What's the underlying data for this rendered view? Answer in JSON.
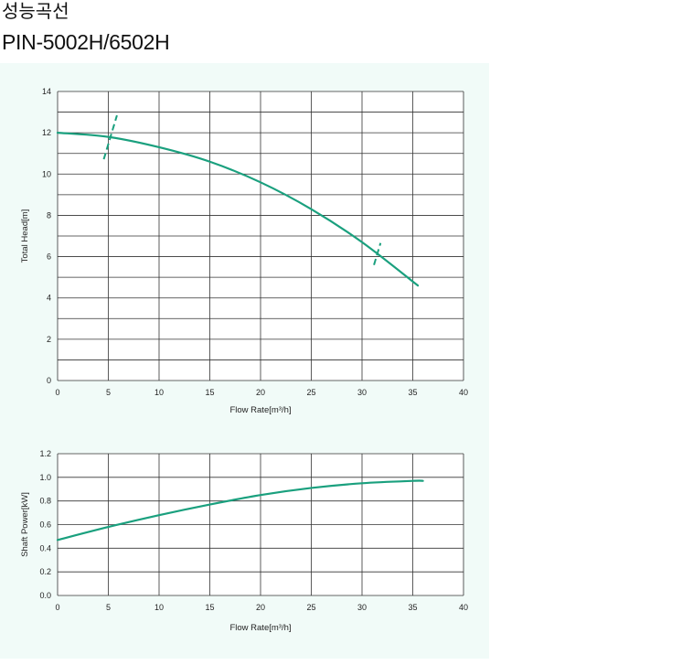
{
  "header": {
    "title_korean": "성능곡선",
    "model": "PIN-5002H/6502H"
  },
  "colors": {
    "curve": "#1aa07e",
    "grid": "#333333",
    "panel_bg": "#f1fbf8",
    "plot_bg": "#ffffff"
  },
  "chart_data": [
    {
      "type": "line",
      "xlabel": "Flow Rate[m³/h]",
      "ylabel": "Total Head[m]",
      "xlim": [
        0,
        40
      ],
      "ylim": [
        0,
        14
      ],
      "xticks": [
        "0",
        "5",
        "10",
        "15",
        "20",
        "25",
        "30",
        "35",
        "40"
      ],
      "yticks": [
        "0",
        "2",
        "4",
        "6",
        "8",
        "10",
        "12",
        "14"
      ],
      "grid": true,
      "series": [
        {
          "x": [
            0,
            5,
            10,
            15,
            20,
            25,
            30,
            35.5
          ],
          "y": [
            12.0,
            11.8,
            11.3,
            10.6,
            9.6,
            8.3,
            6.7,
            4.6
          ]
        }
      ],
      "operating_range_marks": [
        5.2,
        31.5
      ]
    },
    {
      "type": "line",
      "xlabel": "Flow Rate[m³/h]",
      "ylabel": "Shaft Power[kW]",
      "xlim": [
        0,
        40
      ],
      "ylim": [
        0,
        1.2
      ],
      "xticks": [
        "0",
        "5",
        "10",
        "15",
        "20",
        "25",
        "30",
        "35",
        "40"
      ],
      "yticks": [
        "0.0",
        "0.2",
        "0.4",
        "0.6",
        "0.8",
        "1.0",
        "1.2"
      ],
      "grid": true,
      "series": [
        {
          "x": [
            0,
            5,
            10,
            15,
            20,
            25,
            30,
            35,
            36
          ],
          "y": [
            0.47,
            0.58,
            0.68,
            0.77,
            0.85,
            0.91,
            0.95,
            0.97,
            0.97
          ]
        }
      ]
    }
  ]
}
